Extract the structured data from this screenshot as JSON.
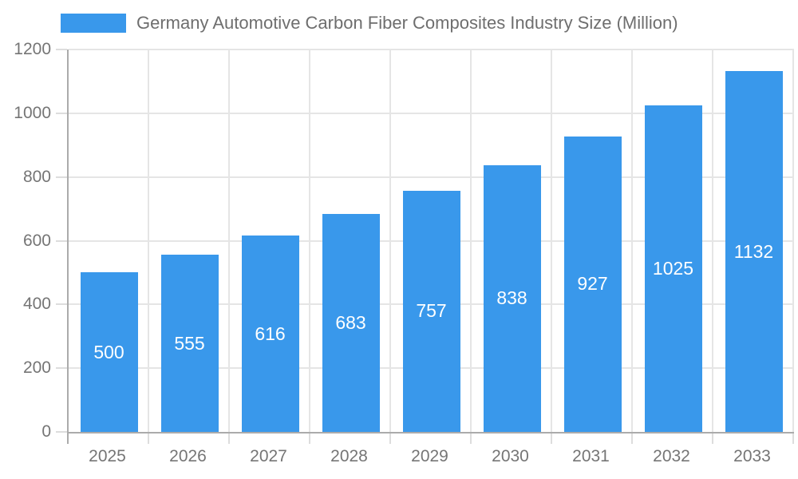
{
  "legend": {
    "items": [
      {
        "label": "Germany Automotive Carbon Fiber Composites Industry Size (Million)",
        "color": "#3998EB"
      }
    ]
  },
  "chart_data": {
    "type": "bar",
    "title": "Germany Automotive Carbon Fiber Composites Industry Size (Million)",
    "categories": [
      "2025",
      "2026",
      "2027",
      "2028",
      "2029",
      "2030",
      "2031",
      "2032",
      "2033"
    ],
    "values": [
      500,
      555,
      616,
      683,
      757,
      838,
      927,
      1025,
      1132
    ],
    "xlabel": "",
    "ylabel": "",
    "ylim": [
      0,
      1200
    ],
    "yticks": [
      0,
      200,
      400,
      600,
      800,
      1000,
      1200
    ],
    "grid": true,
    "legend_position": "top",
    "bar_color": "#3998EB",
    "value_label_color": "#ffffff",
    "value_label_position": "inside-center"
  },
  "colors": {
    "background": "#ffffff",
    "grid": "#e5e5e5",
    "tick": "#dddddd",
    "axis": "#ababab",
    "axis_text": "#757575",
    "legend_text": "#6e6e6e"
  }
}
